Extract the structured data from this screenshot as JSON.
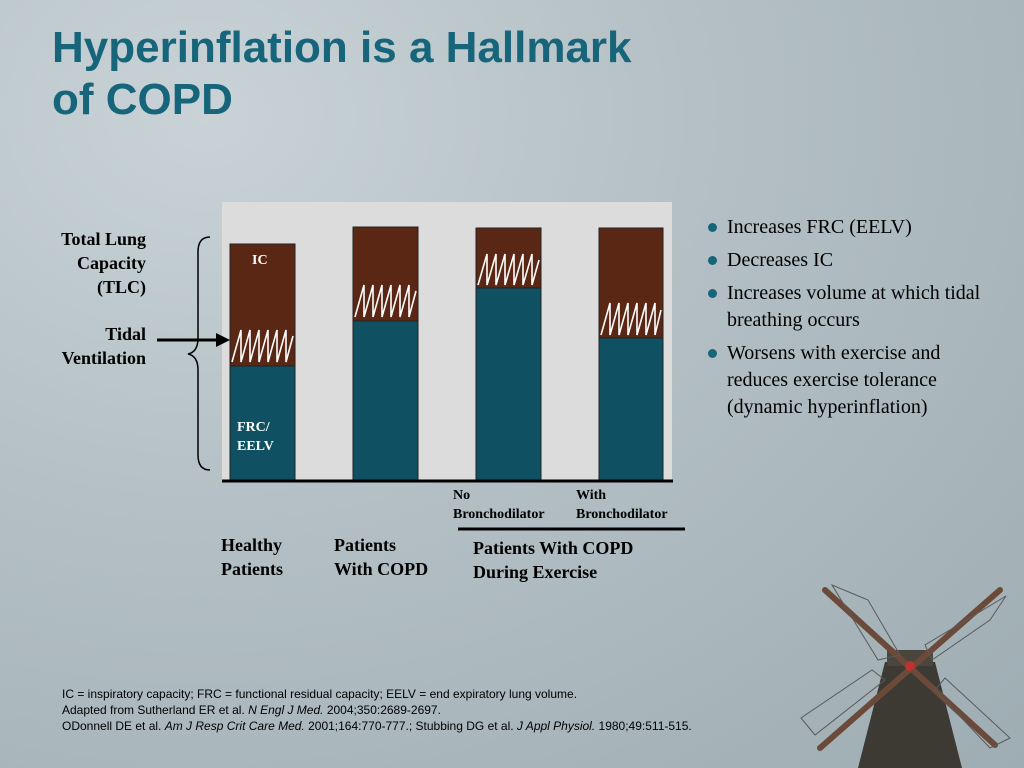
{
  "title": {
    "line1": "Hyperinflation is a Hallmark",
    "line2": "of COPD"
  },
  "left_labels": {
    "tlc": [
      "Total Lung",
      "Capacity",
      "(TLC)"
    ],
    "tidal": [
      "Tidal",
      "Ventilation"
    ]
  },
  "bar_labels": {
    "ic": "IC",
    "frc": [
      "FRC/",
      "EELV"
    ]
  },
  "sub_labels": {
    "no_bronch": [
      "No",
      "Bronchodilator"
    ],
    "with_bronch": [
      "With",
      "Bronchodilator"
    ]
  },
  "categories": {
    "healthy": [
      "Healthy",
      "Patients"
    ],
    "copd": [
      "Patients",
      "With COPD"
    ],
    "exercise": [
      "Patients With COPD",
      "During Exercise"
    ]
  },
  "bullets": [
    "Increases FRC (EELV)",
    "Decreases IC",
    "Increases volume at which tidal breathing occurs",
    "Worsens with exercise and reduces exercise tolerance (dynamic hyperinflation)"
  ],
  "footnotes": {
    "line1": "IC = inspiratory capacity; FRC = functional residual capacity; EELV = end expiratory lung volume.",
    "line2_pre": "Adapted from Sutherland ER et al. ",
    "line2_journal": "N Engl J Med.",
    "line2_post": " 2004;350:2689-2697.",
    "line3_pre": "ODonnell DE et al. ",
    "line3_journal1": "Am J Resp Crit Care Med.",
    "line3_mid": " 2001;164:770-777.; Stubbing DG et al. ",
    "line3_journal2": "J Appl Physiol.",
    "line3_post": " 1980;49:511-515."
  },
  "colors": {
    "title": "#17657a",
    "frc": "#0f5163",
    "ic": "#5a2714",
    "panel": "#dcdcdc",
    "wave": "#ffffff"
  }
}
